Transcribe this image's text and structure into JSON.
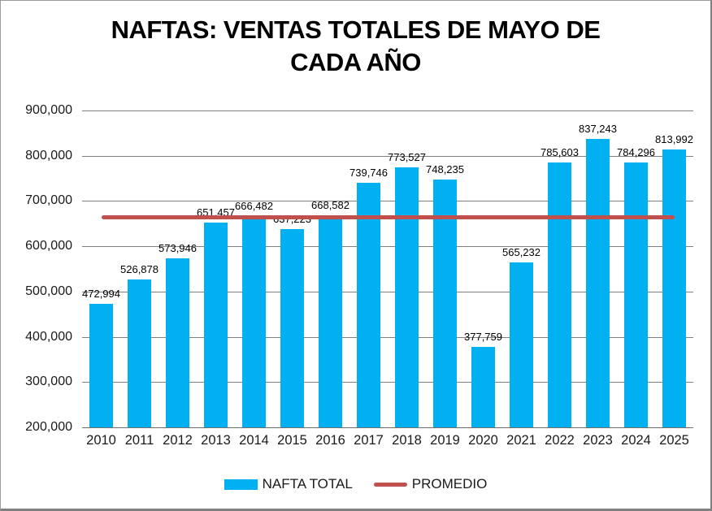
{
  "chart_data": {
    "type": "bar",
    "title_lines": [
      "NAFTAS: VENTAS TOTALES DE MAYO DE",
      "CADA AÑO"
    ],
    "categories": [
      "2010",
      "2011",
      "2012",
      "2013",
      "2014",
      "2015",
      "2016",
      "2017",
      "2018",
      "2019",
      "2020",
      "2021",
      "2022",
      "2023",
      "2024",
      "2025"
    ],
    "series": [
      {
        "name": "NAFTA TOTAL",
        "type": "bar",
        "color": "#00B0F0",
        "values": [
          472994,
          526878,
          573946,
          651457,
          666482,
          637223,
          668582,
          739746,
          773527,
          748235,
          377759,
          565232,
          785603,
          837243,
          784296,
          813992
        ],
        "value_labels": [
          "472,994",
          "526,878",
          "573,946",
          "651,457",
          "666,482",
          "637,223",
          "668,582",
          "739,746",
          "773,527",
          "748,235",
          "377,759",
          "565,232",
          "785,603",
          "837,243",
          "784,296",
          "813,992"
        ]
      },
      {
        "name": "PROMEDIO",
        "type": "line",
        "color": "#C0504D",
        "value": 663950
      }
    ],
    "xlabel": "",
    "ylabel": "",
    "ylim": [
      200000,
      900000
    ],
    "ytick_step": 100000,
    "ytick_labels": [
      "200,000",
      "300,000",
      "400,000",
      "500,000",
      "600,000",
      "700,000",
      "800,000",
      "900,000"
    ],
    "grid": true,
    "gridline_color": "#808080",
    "legend_position": "bottom"
  }
}
